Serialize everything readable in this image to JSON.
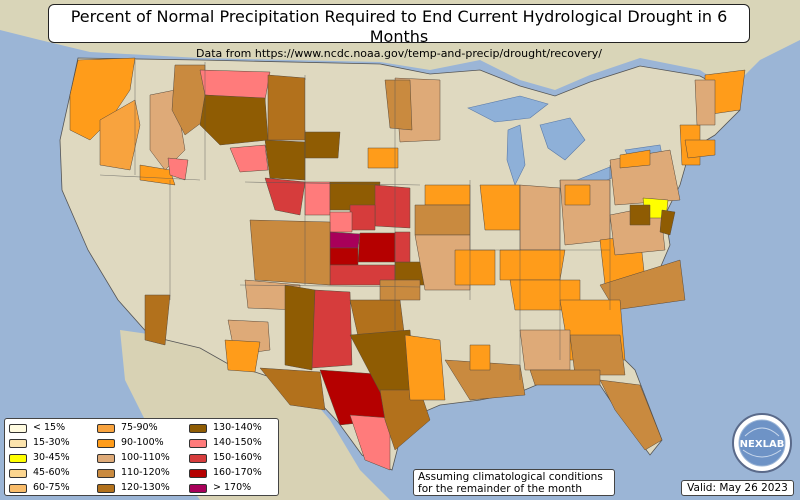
{
  "title": "Percent of Normal Precipitation Required to End Current Hydrological Drought in 6 Months",
  "subtitle": "Data from https://www.ncdc.noaa.gov/temp-and-precip/drought/recovery/",
  "colors": {
    "ocean": "#9bb5d6",
    "land": "#dfd9c0",
    "lake": "#8eb0d8"
  },
  "legend": [
    {
      "label": "< 15%",
      "color": "#fffbe0"
    },
    {
      "label": "15-30%",
      "color": "#fbe3ac"
    },
    {
      "label": "30-45%",
      "color": "#ffff00"
    },
    {
      "label": "45-60%",
      "color": "#fbd58f"
    },
    {
      "label": "60-75%",
      "color": "#f9bc6a"
    },
    {
      "label": "75-90%",
      "color": "#f8a33e"
    },
    {
      "label": "90-100%",
      "color": "#ff9c1a"
    },
    {
      "label": "100-110%",
      "color": "#deaa78"
    },
    {
      "label": "110-120%",
      "color": "#c98a3f"
    },
    {
      "label": "120-130%",
      "color": "#b2711c"
    },
    {
      "label": "130-140%",
      "color": "#8f5c03"
    },
    {
      "label": "140-150%",
      "color": "#ff7b7b"
    },
    {
      "label": "150-160%",
      "color": "#d63c3c"
    },
    {
      "label": "160-170%",
      "color": "#b50000"
    },
    {
      "label": "> 170%",
      "color": "#a8005a"
    }
  ],
  "assumption_line1": "Assuming climatological conditions",
  "assumption_line2": "for the remainder of the month",
  "valid": "Valid: May 26 2023",
  "logo_text": "NEXLAB"
}
